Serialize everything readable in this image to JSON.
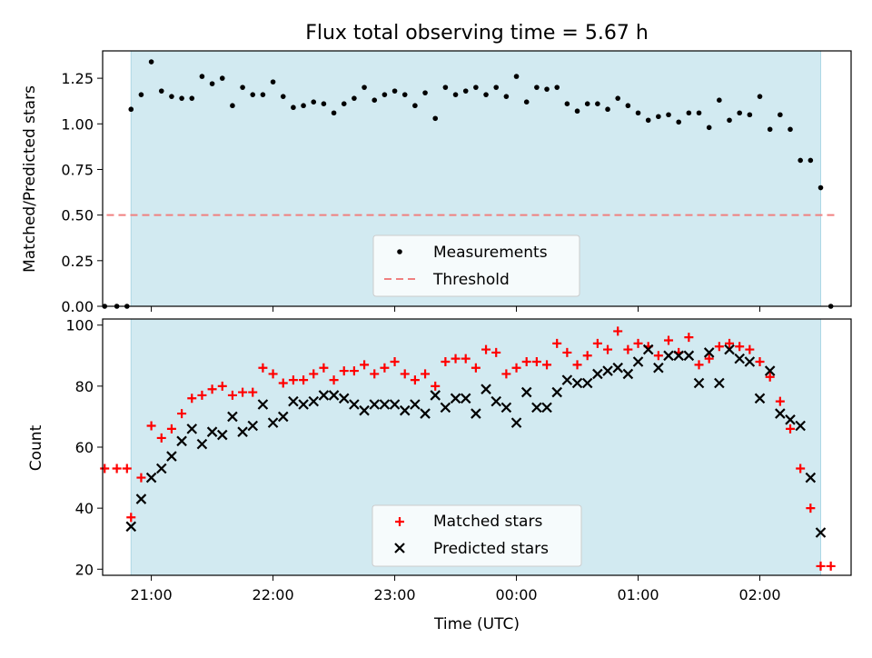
{
  "chart_data": [
    {
      "type": "scatter",
      "title": "Flux total observing time = 5.67 h",
      "ylabel": "Matched/Predicted stars",
      "xlabel": "",
      "ylim": [
        0,
        1.4
      ],
      "y_ticks": [
        "0.00",
        "0.25",
        "0.50",
        "0.75",
        "1.00",
        "1.25"
      ],
      "observing_window": [
        "20:50",
        "02:30"
      ],
      "threshold": 0.5,
      "threshold_x_range": [
        "20:38",
        "02:37"
      ],
      "legend_position": "lower center",
      "legend": [
        "Measurements",
        "Threshold"
      ],
      "series": [
        {
          "name": "Measurements",
          "color": "#000000",
          "x": [
            "20:37",
            "20:43",
            "20:48",
            "20:50",
            "20:55",
            "21:00",
            "21:05",
            "21:10",
            "21:15",
            "21:20",
            "21:25",
            "21:30",
            "21:35",
            "21:40",
            "21:45",
            "21:50",
            "21:55",
            "22:00",
            "22:05",
            "22:10",
            "22:15",
            "22:20",
            "22:25",
            "22:30",
            "22:35",
            "22:40",
            "22:45",
            "22:50",
            "22:55",
            "23:00",
            "23:05",
            "23:10",
            "23:15",
            "23:20",
            "23:25",
            "23:30",
            "23:35",
            "23:40",
            "23:45",
            "23:50",
            "23:55",
            "00:00",
            "00:05",
            "00:10",
            "00:15",
            "00:20",
            "00:25",
            "00:30",
            "00:35",
            "00:40",
            "00:45",
            "00:50",
            "00:55",
            "01:00",
            "01:05",
            "01:10",
            "01:15",
            "01:20",
            "01:25",
            "01:30",
            "01:35",
            "01:40",
            "01:45",
            "01:50",
            "01:55",
            "02:00",
            "02:05",
            "02:10",
            "02:15",
            "02:20",
            "02:25",
            "02:30",
            "02:35"
          ],
          "y": [
            0.0,
            0.0,
            0.0,
            1.08,
            1.16,
            1.34,
            1.18,
            1.15,
            1.14,
            1.14,
            1.26,
            1.22,
            1.25,
            1.1,
            1.2,
            1.16,
            1.16,
            1.23,
            1.15,
            1.09,
            1.1,
            1.12,
            1.11,
            1.06,
            1.11,
            1.14,
            1.2,
            1.13,
            1.16,
            1.18,
            1.16,
            1.1,
            1.17,
            1.03,
            1.2,
            1.16,
            1.18,
            1.2,
            1.16,
            1.2,
            1.15,
            1.26,
            1.12,
            1.2,
            1.19,
            1.2,
            1.11,
            1.07,
            1.11,
            1.11,
            1.08,
            1.14,
            1.1,
            1.06,
            1.02,
            1.04,
            1.05,
            1.01,
            1.06,
            1.06,
            0.98,
            1.13,
            1.02,
            1.06,
            1.05,
            1.15,
            0.97,
            1.05,
            0.97,
            0.8,
            0.8,
            0.65,
            0.0
          ]
        },
        {
          "name": "Threshold",
          "color": "#f08080",
          "style": "dashed"
        }
      ]
    },
    {
      "type": "scatter",
      "xlabel": "Time (UTC)",
      "ylabel": "Count",
      "ylim": [
        18,
        102
      ],
      "y_ticks": [
        "20",
        "40",
        "60",
        "80",
        "100"
      ],
      "x_ticks": [
        "21:00",
        "22:00",
        "23:00",
        "00:00",
        "01:00",
        "02:00"
      ],
      "observing_window": [
        "20:50",
        "02:30"
      ],
      "legend_position": "lower center",
      "legend": [
        "Matched stars",
        "Predicted stars"
      ],
      "series": [
        {
          "name": "Matched stars",
          "marker": "plus",
          "color": "#ff0000",
          "x": [
            "20:37",
            "20:43",
            "20:48",
            "20:50",
            "20:55",
            "21:00",
            "21:05",
            "21:10",
            "21:15",
            "21:20",
            "21:25",
            "21:30",
            "21:35",
            "21:40",
            "21:45",
            "21:50",
            "21:55",
            "22:00",
            "22:05",
            "22:10",
            "22:15",
            "22:20",
            "22:25",
            "22:30",
            "22:35",
            "22:40",
            "22:45",
            "22:50",
            "22:55",
            "23:00",
            "23:05",
            "23:10",
            "23:15",
            "23:20",
            "23:25",
            "23:30",
            "23:35",
            "23:40",
            "23:45",
            "23:50",
            "23:55",
            "00:00",
            "00:05",
            "00:10",
            "00:15",
            "00:20",
            "00:25",
            "00:30",
            "00:35",
            "00:40",
            "00:45",
            "00:50",
            "00:55",
            "01:00",
            "01:05",
            "01:10",
            "01:15",
            "01:20",
            "01:25",
            "01:30",
            "01:35",
            "01:40",
            "01:45",
            "01:50",
            "01:55",
            "02:00",
            "02:05",
            "02:10",
            "02:15",
            "02:20",
            "02:25",
            "02:30",
            "02:35"
          ],
          "y": [
            53,
            53,
            53,
            37,
            50,
            67,
            63,
            66,
            71,
            76,
            77,
            79,
            80,
            77,
            78,
            78,
            86,
            84,
            81,
            82,
            82,
            84,
            86,
            82,
            85,
            85,
            87,
            84,
            86,
            88,
            84,
            82,
            84,
            80,
            88,
            89,
            89,
            86,
            92,
            91,
            84,
            86,
            88,
            88,
            87,
            94,
            91,
            87,
            90,
            94,
            92,
            98,
            92,
            94,
            93,
            90,
            95,
            91,
            96,
            87,
            89,
            93,
            94,
            93,
            92,
            88,
            83,
            75,
            66,
            53,
            40,
            21,
            21
          ]
        },
        {
          "name": "Predicted stars",
          "marker": "x",
          "color": "#000000",
          "x": [
            "20:50",
            "20:55",
            "21:00",
            "21:05",
            "21:10",
            "21:15",
            "21:20",
            "21:25",
            "21:30",
            "21:35",
            "21:40",
            "21:45",
            "21:50",
            "21:55",
            "22:00",
            "22:05",
            "22:10",
            "22:15",
            "22:20",
            "22:25",
            "22:30",
            "22:35",
            "22:40",
            "22:45",
            "22:50",
            "22:55",
            "23:00",
            "23:05",
            "23:10",
            "23:15",
            "23:20",
            "23:25",
            "23:30",
            "23:35",
            "23:40",
            "23:45",
            "23:50",
            "23:55",
            "00:00",
            "00:05",
            "00:10",
            "00:15",
            "00:20",
            "00:25",
            "00:30",
            "00:35",
            "00:40",
            "00:45",
            "00:50",
            "00:55",
            "01:00",
            "01:05",
            "01:10",
            "01:15",
            "01:20",
            "01:25",
            "01:30",
            "01:35",
            "01:40",
            "01:45",
            "01:50",
            "01:55",
            "02:00",
            "02:05",
            "02:10",
            "02:15",
            "02:20",
            "02:25",
            "02:30"
          ],
          "y": [
            34,
            43,
            50,
            53,
            57,
            62,
            66,
            61,
            65,
            64,
            70,
            65,
            67,
            74,
            68,
            70,
            75,
            74,
            75,
            77,
            77,
            76,
            74,
            72,
            74,
            74,
            74,
            72,
            74,
            71,
            77,
            73,
            76,
            76,
            71,
            79,
            75,
            73,
            68,
            78,
            73,
            73,
            78,
            82,
            81,
            81,
            84,
            85,
            86,
            84,
            88,
            92,
            86,
            90,
            90,
            90,
            81,
            91,
            81,
            92,
            89,
            88,
            76,
            85,
            71,
            69,
            67,
            50,
            32
          ]
        }
      ]
    }
  ]
}
